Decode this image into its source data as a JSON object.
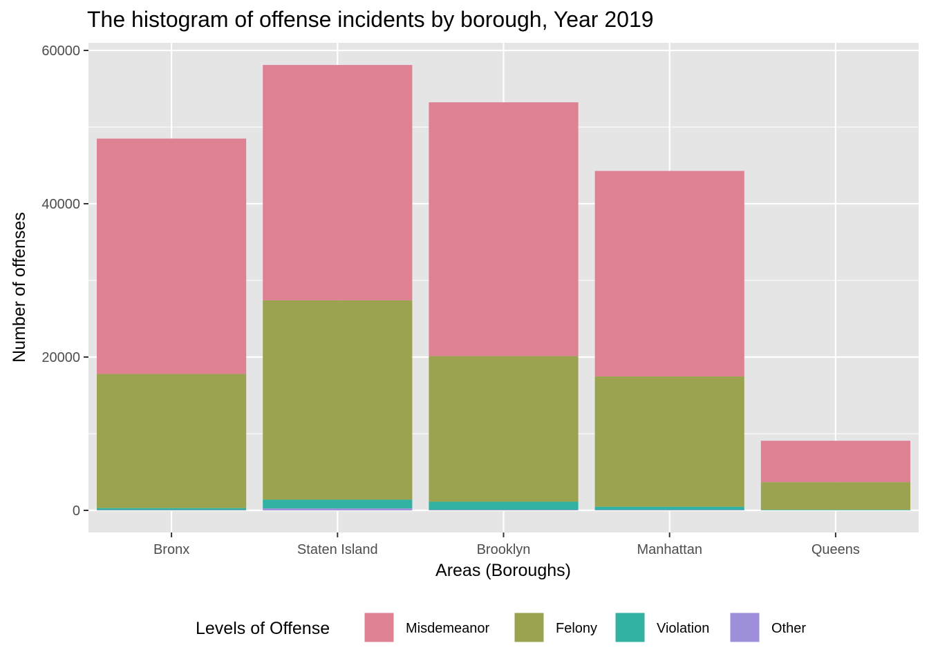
{
  "chart_data": {
    "type": "bar",
    "stacked": true,
    "title": "The histogram of offense incidents by borough, Year 2019",
    "xlabel": "Areas (Boroughs)",
    "ylabel": "Number of offenses",
    "categories": [
      "Bronx",
      "Staten Island",
      "Brooklyn",
      "Manhattan",
      "Queens"
    ],
    "ylim": [
      -3000,
      61000
    ],
    "yticks": [
      0,
      20000,
      40000,
      60000
    ],
    "ytick_labels": [
      "0",
      "20000",
      "40000",
      "60000"
    ],
    "grid": true,
    "legend": {
      "title": "Levels of Offense",
      "position": "bottom"
    },
    "series": [
      {
        "name": "Other",
        "color": "#9f8fdb",
        "values": [
          50,
          250,
          80,
          60,
          20
        ]
      },
      {
        "name": "Violation",
        "color": "#31b2a2",
        "values": [
          250,
          1150,
          1050,
          420,
          60
        ]
      },
      {
        "name": "Felony",
        "color": "#9ba350",
        "values": [
          17500,
          26000,
          19000,
          17000,
          3600
        ]
      },
      {
        "name": "Misdemeanor",
        "color": "#dd8193",
        "values": [
          30700,
          30700,
          33100,
          26800,
          5400
        ]
      }
    ],
    "legend_order": [
      "Misdemeanor",
      "Felony",
      "Violation",
      "Other"
    ]
  }
}
